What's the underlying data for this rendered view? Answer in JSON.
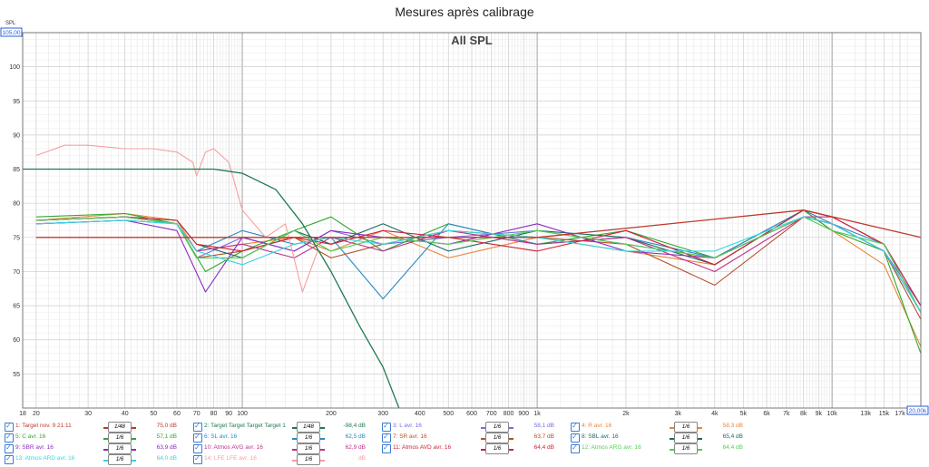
{
  "chart_data": {
    "type": "line",
    "title": "Mesures après calibrage",
    "subtitle": "All SPL",
    "ylabel": "SPL",
    "xlabel": "",
    "y_max_readout": "105,00",
    "x_max_readout": "20,00k",
    "xlim": [
      18,
      20000
    ],
    "ylim": [
      50,
      105
    ],
    "x_scale": "log",
    "grid": true,
    "x_ticks": [
      {
        "v": 18,
        "l": "18"
      },
      {
        "v": 20,
        "l": "20"
      },
      {
        "v": 30,
        "l": "30"
      },
      {
        "v": 40,
        "l": "40"
      },
      {
        "v": 50,
        "l": "50"
      },
      {
        "v": 60,
        "l": "60"
      },
      {
        "v": 70,
        "l": "70"
      },
      {
        "v": 80,
        "l": "80"
      },
      {
        "v": 90,
        "l": "90"
      },
      {
        "v": 100,
        "l": "100"
      },
      {
        "v": 200,
        "l": "200"
      },
      {
        "v": 300,
        "l": "300"
      },
      {
        "v": 400,
        "l": "400"
      },
      {
        "v": 500,
        "l": "500"
      },
      {
        "v": 600,
        "l": "600"
      },
      {
        "v": 700,
        "l": "700"
      },
      {
        "v": 800,
        "l": "800"
      },
      {
        "v": 900,
        "l": "900"
      },
      {
        "v": 1000,
        "l": "1k"
      },
      {
        "v": 2000,
        "l": "2k"
      },
      {
        "v": 3000,
        "l": "3k"
      },
      {
        "v": 4000,
        "l": "4k"
      },
      {
        "v": 5000,
        "l": "5k"
      },
      {
        "v": 6000,
        "l": "6k"
      },
      {
        "v": 7000,
        "l": "7k"
      },
      {
        "v": 8000,
        "l": "8k"
      },
      {
        "v": 9000,
        "l": "9k"
      },
      {
        "v": 10000,
        "l": "10k"
      },
      {
        "v": 13000,
        "l": "13k"
      },
      {
        "v": 15000,
        "l": "15k"
      },
      {
        "v": 17000,
        "l": "17k"
      }
    ],
    "y_ticks": [
      100,
      95,
      90,
      85,
      80,
      75,
      70,
      65,
      60,
      55
    ],
    "series": [
      {
        "name": "1: Target nov. 9 21:11",
        "color": "#c0392b",
        "smoothing": "1/48",
        "value": "75,0 dB",
        "x": [
          20,
          1000,
          8000,
          20000
        ],
        "y": [
          75,
          75,
          79,
          75
        ]
      },
      {
        "name": "2: Target Target Target Target 1",
        "color": "#1e7a4e",
        "smoothing": "1/48",
        "value": "-98,4 dB",
        "x": [
          18,
          80,
          100,
          130,
          160,
          200,
          250,
          300,
          340
        ],
        "y": [
          85,
          85,
          84.4,
          82,
          77,
          70,
          62,
          56,
          50
        ]
      },
      {
        "name": "3: L avr. 16",
        "color": "#7070e0",
        "smoothing": "1/6",
        "value": "58,1 dB",
        "x": [
          20,
          40,
          60,
          70,
          100,
          150,
          200,
          300,
          500,
          1000,
          2000,
          4000,
          8000,
          10000,
          15000,
          20000
        ],
        "y": [
          77.5,
          78,
          77,
          72,
          75,
          73,
          76,
          74,
          75,
          76,
          74,
          72,
          78,
          77,
          73,
          65
        ]
      },
      {
        "name": "4: R avr. 16",
        "color": "#e8853a",
        "smoothing": "1/6",
        "value": "58,3 dB",
        "x": [
          20,
          40,
          60,
          70,
          100,
          150,
          200,
          300,
          500,
          1000,
          2000,
          4000,
          8000,
          10000,
          15000,
          20000
        ],
        "y": [
          77.5,
          78.5,
          77.5,
          73,
          74,
          75,
          73,
          76,
          72,
          75,
          73,
          71,
          79,
          76,
          71,
          59
        ]
      },
      {
        "name": "5: C avr. 16",
        "color": "#2ea82e",
        "smoothing": "1/6",
        "value": "57,1 dB",
        "x": [
          20,
          40,
          60,
          75,
          100,
          150,
          200,
          300,
          500,
          1000,
          2000,
          4000,
          8000,
          10000,
          15000,
          20000
        ],
        "y": [
          78,
          78.5,
          77,
          70,
          73,
          76,
          78,
          73,
          77,
          74,
          76,
          72,
          79,
          76,
          73,
          58
        ]
      },
      {
        "name": "6: SL avr. 16",
        "color": "#2a8ac2",
        "smoothing": "1/6",
        "value": "62,5 dB",
        "x": [
          20,
          40,
          60,
          70,
          100,
          150,
          200,
          300,
          500,
          1000,
          2000,
          4000,
          8000,
          10000,
          15000,
          20000
        ],
        "y": [
          77,
          77.5,
          77,
          73,
          76,
          74,
          75,
          66,
          77,
          74,
          75,
          72,
          79,
          77,
          74,
          64
        ]
      },
      {
        "name": "7: SR avr. 16",
        "color": "#b5502a",
        "smoothing": "1/6",
        "value": "63,7 dB",
        "x": [
          20,
          40,
          60,
          70,
          100,
          150,
          200,
          300,
          500,
          1000,
          2000,
          4000,
          8000,
          10000,
          15000,
          20000
        ],
        "y": [
          77.5,
          78,
          77,
          72,
          73,
          75,
          72,
          74,
          76,
          75,
          74,
          68,
          78,
          77,
          73,
          63
        ]
      },
      {
        "name": "8: SBL avr. 16",
        "color": "#1b6b60",
        "smoothing": "1/6",
        "value": "65,4 dB",
        "x": [
          20,
          40,
          60,
          70,
          100,
          150,
          200,
          300,
          500,
          1000,
          2000,
          4000,
          8000,
          10000,
          15000,
          20000
        ],
        "y": [
          77.5,
          78,
          77.5,
          74,
          72,
          76,
          74,
          77,
          73,
          76,
          75,
          71,
          79,
          78,
          74,
          65
        ]
      },
      {
        "name": "9: SBR avr. 16",
        "color": "#8a2ac2",
        "smoothing": "1/6",
        "value": "63,9 dB",
        "x": [
          20,
          40,
          60,
          75,
          100,
          150,
          200,
          300,
          500,
          1000,
          2000,
          4000,
          8000,
          10000,
          15000,
          20000
        ],
        "y": [
          77,
          77.5,
          76,
          67,
          75,
          73,
          76,
          75,
          74,
          77,
          73,
          72,
          78,
          77,
          73,
          64
        ]
      },
      {
        "name": "10: Atmos AVG avr. 16",
        "color": "#c0308a",
        "smoothing": "1/6",
        "value": "62,9 dB",
        "x": [
          20,
          40,
          60,
          70,
          100,
          150,
          200,
          300,
          500,
          1000,
          2000,
          4000,
          8000,
          10000,
          15000,
          20000
        ],
        "y": [
          77.5,
          78,
          77,
          73,
          74,
          72,
          75,
          73,
          76,
          74,
          75,
          70,
          78,
          78,
          74,
          64
        ]
      },
      {
        "name": "11: Atmos AVD avr. 16",
        "color": "#d0203a",
        "smoothing": "1/6",
        "value": "64,4 dB",
        "x": [
          20,
          40,
          60,
          70,
          100,
          150,
          200,
          300,
          500,
          1000,
          2000,
          4000,
          8000,
          10000,
          15000,
          20000
        ],
        "y": [
          77.5,
          78,
          77.5,
          74,
          73,
          75,
          74,
          76,
          75,
          73,
          76,
          71,
          79,
          78,
          74,
          65
        ]
      },
      {
        "name": "12: Atmos ARG avr. 16",
        "color": "#50d050",
        "smoothing": "1/6",
        "value": "64,4 dB",
        "x": [
          20,
          40,
          60,
          70,
          100,
          150,
          200,
          300,
          500,
          1000,
          2000,
          4000,
          8000,
          10000,
          15000,
          20000
        ],
        "y": [
          77.5,
          78,
          77,
          72,
          72,
          76,
          73,
          75,
          74,
          76,
          74,
          72,
          78,
          76,
          74,
          64
        ]
      },
      {
        "name": "13: Atmos ARD avr. 16",
        "color": "#30d8e0",
        "smoothing": "1/6",
        "value": "64,0 dB",
        "x": [
          20,
          40,
          60,
          70,
          100,
          150,
          200,
          300,
          500,
          1000,
          2000,
          4000,
          8000,
          10000,
          15000,
          20000
        ],
        "y": [
          77,
          77.5,
          77,
          73,
          71,
          74,
          75,
          74,
          76,
          75,
          73,
          73,
          78,
          77,
          73,
          64
        ]
      },
      {
        "name": "14: LFE LFE avr. 16",
        "color": "#f4a0a0",
        "smoothing": "1/6",
        "value": "dB",
        "x": [
          20,
          25,
          30,
          40,
          50,
          60,
          68,
          70,
          75,
          80,
          90,
          100,
          120,
          140,
          160,
          180
        ],
        "y": [
          87,
          88.5,
          88.5,
          88,
          88,
          87.5,
          86,
          84,
          87.5,
          88,
          86,
          79,
          75,
          77,
          67,
          73
        ]
      }
    ]
  },
  "legend_layout": [
    [
      0,
      1,
      2,
      3
    ],
    [
      4,
      5,
      6,
      7
    ],
    [
      8,
      9,
      10,
      11
    ],
    [
      12,
      13
    ]
  ]
}
